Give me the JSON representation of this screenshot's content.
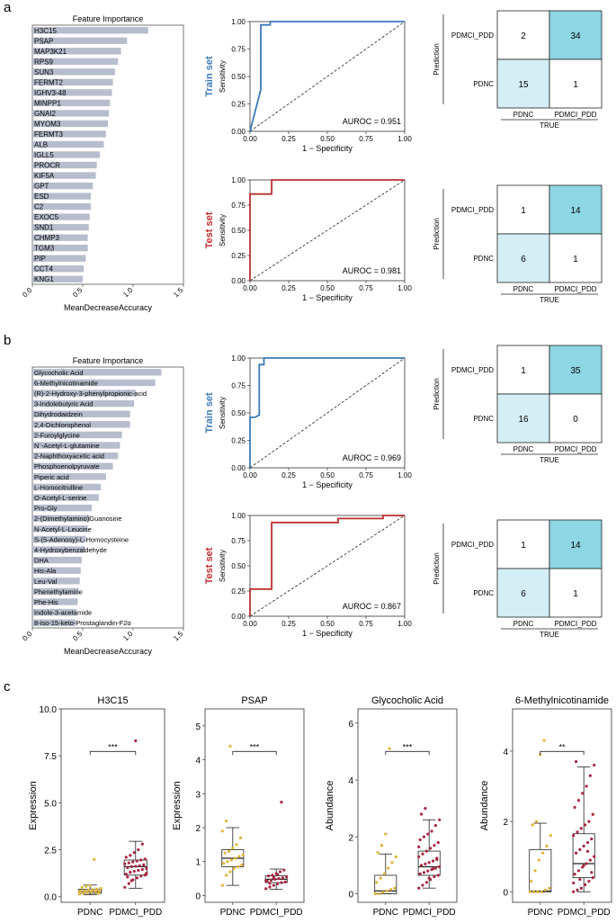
{
  "panel_labels": [
    "a",
    "b",
    "c"
  ],
  "colors": {
    "fi_bar": "#b6bdcd",
    "train_line": "#3a7ab8",
    "test_line": "#bf2f2f",
    "train_label": "#3a7ab8",
    "test_label": "#c62f2f",
    "cm_high": "#8dd6e4",
    "cm_low": "#d3eef5",
    "pdnc_dot": "#e0b53a",
    "pdd_dot": "#a8273e"
  },
  "chart_data": [
    {
      "id": "a-fi",
      "type": "bar",
      "orientation": "horizontal",
      "title": "Feature Importance",
      "xlabel": "MeanDecreaseAccuracy",
      "xlim": [
        0,
        1.5
      ],
      "xticks": [
        "0.0",
        "0.5",
        "1.0",
        "1.5"
      ],
      "categories": [
        "H3C15",
        "PSAP",
        "MAP3K21",
        "RPS9",
        "SUN3",
        "FERMT2",
        "IGHV3-48",
        "MINPP1",
        "GNAI2",
        "MYOM3",
        "FERMT3",
        "ALB",
        "IGLL5",
        "PROCR",
        "KIF5A",
        "GPT",
        "ESD",
        "C2",
        "EXOC5",
        "SND1",
        "CHMP3",
        "TGM3",
        "PIP",
        "CCT4",
        "KNG1"
      ],
      "values": [
        1.15,
        0.94,
        0.88,
        0.85,
        0.82,
        0.8,
        0.79,
        0.77,
        0.76,
        0.75,
        0.73,
        0.71,
        0.67,
        0.64,
        0.63,
        0.6,
        0.58,
        0.58,
        0.57,
        0.56,
        0.55,
        0.55,
        0.53,
        0.51,
        0.5
      ]
    },
    {
      "id": "a-roc-train",
      "type": "line",
      "set_label": "Train set",
      "xlabel": "1 − Specificity",
      "ylabel": "Sensitivity",
      "annotation": "AUROC = 0.951",
      "xlim": [
        0,
        1
      ],
      "ylim": [
        0,
        1
      ],
      "ticks": [
        "0.00",
        "0.25",
        "0.50",
        "0.75",
        "1.00"
      ],
      "tick_values": [
        0,
        0.25,
        0.5,
        0.75,
        1
      ],
      "x": [
        0,
        0.07,
        0.07,
        0.07,
        0.1,
        0.1,
        0.13,
        0.13,
        1.0
      ],
      "y": [
        0,
        0.38,
        0.8,
        0.97,
        0.97,
        0.97,
        0.97,
        1.0,
        1.0
      ]
    },
    {
      "id": "a-roc-test",
      "type": "line",
      "set_label": "Test set",
      "xlabel": "1 − Specificity",
      "ylabel": "Sensitivity",
      "annotation": "AUROC = 0.981",
      "xlim": [
        0,
        1
      ],
      "ylim": [
        0,
        1
      ],
      "ticks": [
        "0.00",
        "0.25",
        "0.50",
        "0.75",
        "1.00"
      ],
      "tick_values": [
        0,
        0.25,
        0.5,
        0.75,
        1
      ],
      "x": [
        0,
        0.0,
        0.14,
        0.14,
        1.0
      ],
      "y": [
        0,
        0.86,
        0.86,
        1.0,
        1.0
      ]
    },
    {
      "id": "a-cm-train",
      "type": "table",
      "ylabel": "Prediction",
      "xlabel": "TRUE",
      "row_labels": [
        "PDMCI_PDD",
        "PDNC"
      ],
      "col_labels": [
        "PDNC",
        "PDMCI_PDD"
      ],
      "cells": [
        [
          2,
          34
        ],
        [
          15,
          1
        ]
      ],
      "cell_shading": [
        [
          "white",
          "high"
        ],
        [
          "low",
          "white"
        ]
      ]
    },
    {
      "id": "a-cm-test",
      "type": "table",
      "ylabel": "Prediction",
      "xlabel": "TRUE",
      "row_labels": [
        "PDMCI_PDD",
        "PDNC"
      ],
      "col_labels": [
        "PDNC",
        "PDMCI_PDD"
      ],
      "cells": [
        [
          1,
          14
        ],
        [
          6,
          1
        ]
      ],
      "cell_shading": [
        [
          "white",
          "high"
        ],
        [
          "low",
          "white"
        ]
      ]
    },
    {
      "id": "b-fi",
      "type": "bar",
      "orientation": "horizontal",
      "title": "Feature Importance",
      "xlabel": "MeanDecreaseAccuracy",
      "xlim": [
        0,
        1.5
      ],
      "xticks": [
        "0.0",
        "0.5",
        "1.0",
        "1.5"
      ],
      "categories": [
        "Glycocholic Acid",
        "6-Methylnicotinamide",
        "(R)-2-Hydroxy-3-phenylpropionic-acid",
        "3-Indolebutyric Acid",
        "Dihydrodaidzein",
        "2,4-Dichlorophenol",
        "2-Furoylglycine",
        "N¨-Acetyl-L-glutamine",
        "2-Naphthoxyacetic acid",
        "Phosphoenolpyruvate",
        "Piperic acid",
        "L-Homocitrulline",
        "O-Acetyl-L-serine",
        "Pro-Gly",
        "2-(Dimethylamino)Guanosine",
        "N-Acetyl-L-Leucine",
        "S-(5-Adenosy)-L-Homocysteine",
        "4-Hydroxybenzaldehyde",
        "DHA",
        "His-Ala",
        "Leu-Val",
        "Phenethylamine",
        "Phe-His",
        "Indole-3-acetamide",
        "8-iso-15-keto-Prostaglandin-F2α"
      ],
      "values": [
        1.28,
        1.22,
        1.03,
        1.01,
        0.97,
        0.97,
        0.89,
        0.87,
        0.85,
        0.8,
        0.73,
        0.68,
        0.66,
        0.59,
        0.57,
        0.55,
        0.53,
        0.52,
        0.49,
        0.48,
        0.47,
        0.46,
        0.45,
        0.44,
        0.43
      ]
    },
    {
      "id": "b-roc-train",
      "type": "line",
      "set_label": "Train set",
      "xlabel": "1 − Specificity",
      "ylabel": "Sensitivity",
      "annotation": "AUROC = 0.969",
      "xlim": [
        0,
        1
      ],
      "ylim": [
        0,
        1
      ],
      "ticks": [
        "0.00",
        "0.25",
        "0.50",
        "0.75",
        "1.00"
      ],
      "tick_values": [
        0,
        0.25,
        0.5,
        0.75,
        1
      ],
      "x": [
        0,
        0,
        0.03,
        0.06,
        0.06,
        0.09,
        0.09,
        1.0
      ],
      "y": [
        0,
        0.46,
        0.46,
        0.48,
        0.94,
        0.94,
        1.0,
        1.0
      ]
    },
    {
      "id": "b-roc-test",
      "type": "line",
      "set_label": "Test set",
      "xlabel": "1 − Specificity",
      "ylabel": "Sensitivity",
      "annotation": "AUROC = 0.867",
      "xlim": [
        0,
        1
      ],
      "ylim": [
        0,
        1
      ],
      "ticks": [
        "0.00",
        "0.25",
        "0.50",
        "0.75",
        "1.00"
      ],
      "tick_values": [
        0,
        0.25,
        0.5,
        0.75,
        1
      ],
      "x": [
        0,
        0,
        0.14,
        0.14,
        0.57,
        0.57,
        0.86,
        0.86,
        1.0
      ],
      "y": [
        0,
        0.27,
        0.27,
        0.93,
        0.93,
        0.97,
        0.97,
        1.0,
        1.0
      ]
    },
    {
      "id": "b-cm-train",
      "type": "table",
      "ylabel": "Prediction",
      "xlabel": "TRUE",
      "row_labels": [
        "PDMCI_PDD",
        "PDNC"
      ],
      "col_labels": [
        "PDNC",
        "PDMCI_PDD"
      ],
      "cells": [
        [
          1,
          35
        ],
        [
          16,
          0
        ]
      ],
      "cell_shading": [
        [
          "white",
          "high"
        ],
        [
          "low",
          "white"
        ]
      ]
    },
    {
      "id": "b-cm-test",
      "type": "table",
      "ylabel": "Prediction",
      "xlabel": "TRUE",
      "row_labels": [
        "PDMCI_PDD",
        "PDNC"
      ],
      "col_labels": [
        "PDNC",
        "PDMCI_PDD"
      ],
      "cells": [
        [
          1,
          14
        ],
        [
          6,
          1
        ]
      ],
      "cell_shading": [
        [
          "white",
          "high"
        ],
        [
          "low",
          "white"
        ]
      ]
    },
    {
      "id": "c-box-h3c15",
      "type": "scatter",
      "subtype": "boxplot",
      "title": "H3C15",
      "ylabel": "Expression",
      "categories": [
        "PDNC",
        "PDMCI_PDD"
      ],
      "ylim": [
        -0.3,
        10
      ],
      "yticks": [
        0,
        2.5,
        5,
        7.5,
        10
      ],
      "ytick_labels": [
        "0.0",
        "2.5",
        "5.0",
        "7.5",
        "10.0"
      ],
      "significance": "***",
      "boxes": [
        {
          "min": 0.1,
          "q1": 0.18,
          "median": 0.28,
          "q3": 0.4,
          "max": 0.62
        },
        {
          "min": 0.45,
          "q1": 1.15,
          "median": 1.6,
          "q3": 1.95,
          "max": 2.95
        }
      ],
      "points": [
        [
          0.15,
          0.2,
          0.22,
          0.25,
          0.27,
          0.28,
          0.3,
          0.32,
          0.35,
          0.38,
          0.4,
          0.45,
          0.5,
          0.55,
          0.6,
          1.98,
          0.18,
          0.24
        ],
        [
          0.5,
          0.7,
          0.9,
          1.0,
          1.1,
          1.15,
          1.2,
          1.3,
          1.35,
          1.4,
          1.45,
          1.5,
          1.55,
          1.6,
          1.62,
          1.65,
          1.7,
          1.75,
          1.8,
          1.85,
          1.9,
          1.95,
          2.0,
          2.1,
          2.2,
          2.35,
          2.5,
          2.8,
          1.25,
          1.05,
          0.85,
          8.3
        ]
      ]
    },
    {
      "id": "c-box-psap",
      "type": "scatter",
      "subtype": "boxplot",
      "title": "PSAP",
      "ylabel": "Expression",
      "categories": [
        "PDNC",
        "PDMCI_PDD"
      ],
      "ylim": [
        -0.2,
        5.5
      ],
      "yticks": [
        0,
        1,
        2,
        3,
        4,
        5
      ],
      "ytick_labels": [
        "0",
        "1",
        "2",
        "3",
        "4",
        "5"
      ],
      "significance": "***",
      "boxes": [
        {
          "min": 0.3,
          "q1": 0.85,
          "median": 1.1,
          "q3": 1.35,
          "max": 2.0
        },
        {
          "min": 0.18,
          "q1": 0.38,
          "median": 0.48,
          "q3": 0.58,
          "max": 0.78
        }
      ],
      "points": [
        [
          0.3,
          0.6,
          0.7,
          0.8,
          0.85,
          0.9,
          0.95,
          1.0,
          1.05,
          1.1,
          1.15,
          1.2,
          1.25,
          1.3,
          1.4,
          1.5,
          1.7,
          1.9,
          2.2,
          4.4
        ],
        [
          0.2,
          0.25,
          0.3,
          0.35,
          0.38,
          0.4,
          0.42,
          0.45,
          0.48,
          0.5,
          0.52,
          0.55,
          0.58,
          0.6,
          0.65,
          0.7,
          0.75,
          0.44,
          0.36,
          0.53,
          0.62,
          2.75
        ]
      ]
    },
    {
      "id": "c-box-glyco",
      "type": "scatter",
      "subtype": "boxplot",
      "title": "Glycocholic Acid",
      "ylabel": "Abundance",
      "categories": [
        "PDNC",
        "PDMCI_PDD"
      ],
      "ylim": [
        -0.3,
        6.5
      ],
      "yticks": [
        0,
        2,
        4,
        6
      ],
      "ytick_labels": [
        "0",
        "2",
        "4",
        "6"
      ],
      "significance": "***",
      "boxes": [
        {
          "min": 0.0,
          "q1": 0.0,
          "median": 0.1,
          "q3": 0.65,
          "max": 1.4
        },
        {
          "min": 0.2,
          "q1": 0.65,
          "median": 0.95,
          "q3": 1.5,
          "max": 2.6
        }
      ],
      "points": [
        [
          0.0,
          0.0,
          0.05,
          0.1,
          0.15,
          0.2,
          0.4,
          0.55,
          0.7,
          0.9,
          1.1,
          1.3,
          1.45,
          1.7,
          2.1,
          5.1
        ],
        [
          0.2,
          0.3,
          0.4,
          0.5,
          0.6,
          0.65,
          0.7,
          0.75,
          0.8,
          0.85,
          0.9,
          0.95,
          1.0,
          1.05,
          1.1,
          1.15,
          1.2,
          1.3,
          1.4,
          1.5,
          1.6,
          1.7,
          1.8,
          1.9,
          2.0,
          2.1,
          2.2,
          2.4,
          2.6,
          2.8,
          3.0,
          0.55,
          0.88,
          1.25,
          1.65
        ]
      ]
    },
    {
      "id": "c-box-6mn",
      "type": "scatter",
      "subtype": "boxplot",
      "title": "6-Methylnicotinamide",
      "ylabel": "Abundance",
      "categories": [
        "PDNC",
        "PDMCI_PDD"
      ],
      "ylim": [
        -0.3,
        5.2
      ],
      "yticks": [
        0,
        2,
        4
      ],
      "ytick_labels": [
        "0",
        "2",
        "4"
      ],
      "significance": "**",
      "boxes": [
        {
          "min": 0.0,
          "q1": 0.0,
          "median": 0.02,
          "q3": 1.2,
          "max": 1.95
        },
        {
          "min": 0.0,
          "q1": 0.4,
          "median": 0.8,
          "q3": 1.65,
          "max": 3.55
        }
      ],
      "points": [
        [
          0.0,
          0.0,
          0.0,
          0.0,
          0.05,
          0.1,
          0.3,
          0.6,
          0.9,
          1.1,
          1.3,
          1.6,
          1.9,
          2.0,
          3.9,
          4.3
        ],
        [
          0.0,
          0.05,
          0.1,
          0.2,
          0.3,
          0.4,
          0.5,
          0.6,
          0.7,
          0.8,
          0.9,
          1.0,
          1.1,
          1.2,
          1.3,
          1.4,
          1.5,
          1.6,
          1.7,
          1.8,
          1.9,
          2.0,
          2.2,
          2.4,
          2.6,
          2.8,
          3.0,
          3.3,
          3.6,
          3.7,
          0.35,
          0.75,
          1.15,
          0.55,
          0.25
        ]
      ]
    }
  ]
}
